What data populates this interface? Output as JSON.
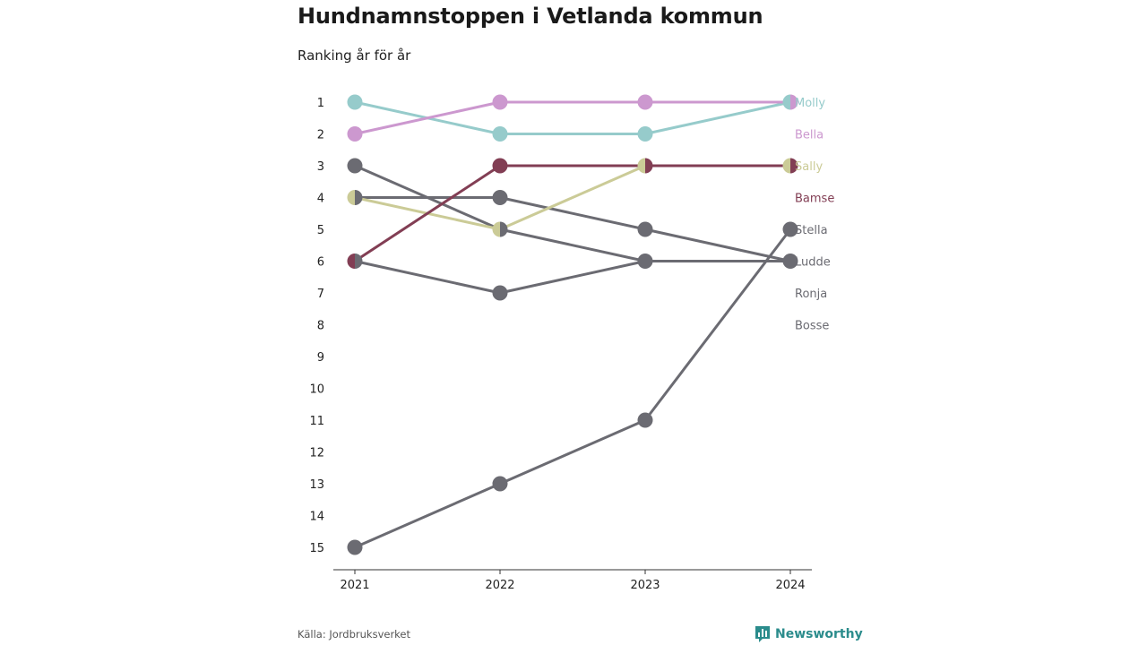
{
  "title": "Hundnamnstoppen i Vetlanda kommun",
  "subtitle": "Ranking år för år",
  "source": "Källa: Jordbruksverket",
  "brand": {
    "name": "Newsworthy",
    "icon": "newsworthy-logo-icon",
    "color": "#2b8c8c"
  },
  "chart_data": {
    "type": "line",
    "subtype": "bump",
    "x": [
      "2021",
      "2022",
      "2023",
      "2024"
    ],
    "y_ticks": [
      1,
      2,
      3,
      4,
      5,
      6,
      7,
      8,
      9,
      10,
      11,
      12,
      13,
      14,
      15
    ],
    "ylim": [
      1,
      15
    ],
    "y_reversed": true,
    "grid": false,
    "series": [
      {
        "name": "Molly",
        "color": "#96cbcb",
        "values": [
          1,
          2,
          2,
          1
        ]
      },
      {
        "name": "Bella",
        "color": "#cc98cf",
        "values": [
          2,
          1,
          1,
          1
        ]
      },
      {
        "name": "Sally",
        "color": "#cbcb97",
        "values": [
          4,
          5,
          3,
          3
        ]
      },
      {
        "name": "Bamse",
        "color": "#823e54",
        "values": [
          6,
          3,
          3,
          3
        ]
      },
      {
        "name": "Stella",
        "color": "#6b6b72",
        "values": [
          15,
          13,
          11,
          5
        ]
      },
      {
        "name": "Ludde",
        "color": "#6b6b72",
        "values": [
          3,
          5,
          6,
          6
        ]
      },
      {
        "name": "Ronja",
        "color": "#6b6b72",
        "values": [
          4,
          4,
          5,
          6
        ]
      },
      {
        "name": "Bosse",
        "color": "#6b6b72",
        "values": [
          6,
          7,
          6,
          6
        ]
      }
    ]
  }
}
